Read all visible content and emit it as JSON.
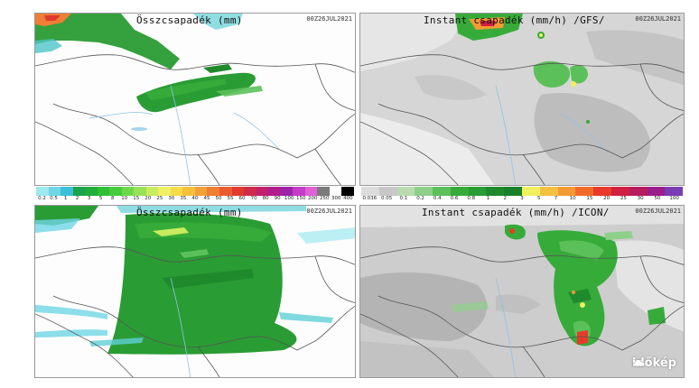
{
  "panels": {
    "top_left": {
      "title": "Összcsapadék (mm)",
      "date": "00Z26JUL2021"
    },
    "top_right": {
      "title": "Instant csapadék (mm/h) /GFS/",
      "date": "00Z26JUL2021"
    },
    "bottom_left": {
      "title": "Összcsapadék (mm)",
      "date": "00Z26JUL2021"
    },
    "bottom_right": {
      "title": "Instant csapadék (mm/h) /ICON/",
      "date": "00Z26JUL2021"
    }
  },
  "colorbars": {
    "total": {
      "labels": [
        "0.2",
        "0.5",
        "1",
        "2",
        "3",
        "5",
        "8",
        "10",
        "15",
        "20",
        "25",
        "30",
        "35",
        "40",
        "45",
        "50",
        "55",
        "60",
        "70",
        "80",
        "90",
        "100",
        "150",
        "200",
        "250",
        "300",
        "400"
      ],
      "colors": [
        "#9ee8f0",
        "#6fd6e6",
        "#3cc0d9",
        "#1aa24c",
        "#21ad3c",
        "#2fbf35",
        "#45cc3c",
        "#6bd94a",
        "#98e25a",
        "#c8ec5e",
        "#f0f064",
        "#f7dc4a",
        "#f6c03c",
        "#f4a03a",
        "#f07e34",
        "#ea5c30",
        "#e03a2e",
        "#d02a4a",
        "#c0206c",
        "#b01e8c",
        "#9c22aa",
        "#c43cc8",
        "#e060d8",
        "#7a7a7a",
        "#ffffff",
        "#000000"
      ]
    },
    "instant": {
      "labels": [
        "0.036",
        "0.05",
        "0.1",
        "0.2",
        "0.4",
        "0.6",
        "0.8",
        "1",
        "2",
        "3",
        "5",
        "7",
        "10",
        "15",
        "20",
        "25",
        "30",
        "50",
        "100"
      ],
      "colors": [
        "#dcdcdc",
        "#c8c8c8",
        "#b8dcb0",
        "#8ed08a",
        "#5cc05a",
        "#36ab3a",
        "#2a9c34",
        "#1f8a2c",
        "#188028",
        "#f0f060",
        "#f4c040",
        "#f49a34",
        "#f06a2c",
        "#e83a2a",
        "#d02040",
        "#b81c60",
        "#9a1e8a",
        "#7a3cb4"
      ]
    }
  },
  "legend_hidden": false,
  "logo": {
    "text": "időkép"
  }
}
